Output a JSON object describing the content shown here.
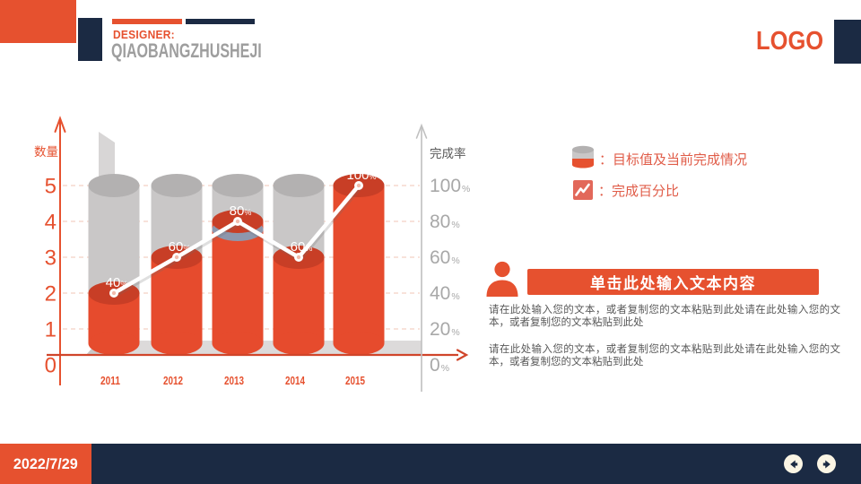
{
  "header": {
    "designer_label": "DESIGNER:",
    "designer_name": "QIAOBANGZHUSHEJI",
    "logo": "LOGO"
  },
  "legend": {
    "items": [
      {
        "icon": "cylinder-gauge-icon",
        "label": "：目标值及当前完成情况"
      },
      {
        "icon": "line-chart-icon",
        "label": "：完成百分比"
      }
    ]
  },
  "content": {
    "banner_title": "单击此处输入文本内容",
    "person_icon": "person-icon",
    "paragraphs": [
      "请在此处输入您的文本，或者复制您的文本粘贴到此处请在此处输入您的文本，或者复制您的文本粘贴到此处",
      "请在此处输入您的文本，或者复制您的文本粘贴到此处请在此处输入您的文本，或者复制您的文本粘贴到此处"
    ]
  },
  "footer": {
    "date": "2022/7/29",
    "nav": {
      "prev_icon": "arrow-left-icon",
      "next_icon": "arrow-right-icon"
    }
  },
  "colors": {
    "accent_orange": "#E6512F",
    "cylinder_orange": "#E64B2D",
    "cylinder_orange_top": "#C83E26",
    "navy": "#1B2A43",
    "cylinder_gray": "#C9C7C7",
    "cylinder_gray_top": "#B3B1B1",
    "grid_pink": "#F2C5B4",
    "axis_gray": "#C0C0C0",
    "tick_gray": "#A8A8A8",
    "shadow_ring_blue": "#8D97AD",
    "cream": "#FBF5E4",
    "body_text": "#595959"
  },
  "chart_data": {
    "type": "bar",
    "subtype": "cylinder-target-fill-with-line",
    "title": "",
    "categories": [
      "2011",
      "2012",
      "2013",
      "2014",
      "2015"
    ],
    "series": [
      {
        "name": "目标值及当前完成情况",
        "type": "bar",
        "target_pct": [
          100,
          100,
          100,
          100,
          100
        ],
        "completion_pct": [
          40,
          60,
          80,
          60,
          100
        ]
      },
      {
        "name": "完成百分比",
        "type": "line",
        "values_pct": [
          40,
          60,
          80,
          60,
          100
        ]
      }
    ],
    "point_labels": [
      "40%",
      "60%",
      "80%",
      "60%",
      "100%"
    ],
    "left_axis": {
      "title": "数量",
      "ticks": [
        "5",
        "4",
        "3",
        "2",
        "1",
        "0"
      ],
      "range": [
        0,
        5
      ]
    },
    "right_axis": {
      "title": "完成率",
      "ticks": [
        "100",
        "80",
        "60",
        "40",
        "20",
        "0"
      ],
      "unit": "%",
      "range": [
        0,
        100
      ]
    },
    "grid": "dashed",
    "legend_position": "right"
  }
}
